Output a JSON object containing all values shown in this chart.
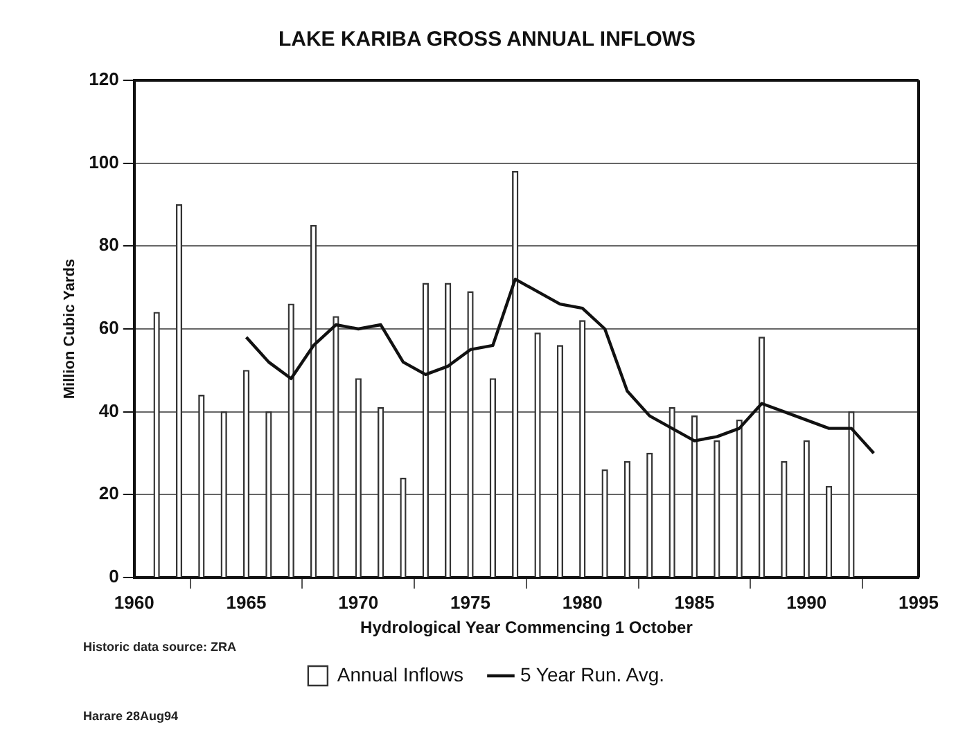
{
  "chart_data": {
    "type": "bar",
    "title": "LAKE KARIBA GROSS ANNUAL INFLOWS",
    "xlabel": "Hydrological Year Commencing 1 October",
    "ylabel": "Million Cubic Yards",
    "series": [
      {
        "name": "Annual Inflows",
        "color": "#333333",
        "x": [
          1961,
          1962,
          1963,
          1964,
          1965,
          1966,
          1967,
          1968,
          1969,
          1970,
          1971,
          1972,
          1973,
          1974,
          1975,
          1976,
          1977,
          1978,
          1979,
          1980,
          1981,
          1982,
          1983,
          1984,
          1985,
          1986,
          1987,
          1988,
          1989,
          1990,
          1991,
          1992
        ],
        "values": [
          64,
          90,
          44,
          40,
          50,
          40,
          66,
          85,
          63,
          48,
          41,
          24,
          71,
          71,
          69,
          48,
          98,
          59,
          56,
          62,
          26,
          28,
          30,
          41,
          39,
          33,
          38,
          58,
          28,
          33,
          22,
          40
        ]
      },
      {
        "name": "5 Year Run. Avg.",
        "type": "line",
        "color": "#111111",
        "x": [
          1965,
          1966,
          1967,
          1968,
          1969,
          1970,
          1971,
          1972,
          1973,
          1974,
          1975,
          1976,
          1977,
          1978,
          1979,
          1980,
          1981,
          1982,
          1983,
          1984,
          1985,
          1986,
          1987,
          1988,
          1989,
          1990,
          1991,
          1992,
          1993
        ],
        "values": [
          58,
          52,
          48,
          56,
          61,
          60,
          61,
          52,
          49,
          51,
          55,
          56,
          72,
          69,
          66,
          65,
          60,
          45,
          39,
          36,
          33,
          34,
          36,
          42,
          40,
          38,
          36,
          36,
          30
        ]
      }
    ],
    "xlim": [
      1960,
      1995
    ],
    "xticks": [
      1960,
      1965,
      1970,
      1975,
      1980,
      1985,
      1990,
      1995
    ],
    "ylim": [
      0,
      120
    ],
    "yticks": [
      0,
      20,
      40,
      60,
      80,
      100,
      120
    ],
    "grid": "y",
    "legend": "bottom",
    "marker": "none",
    "line_style": "solid",
    "annotations": [
      "Historic data source: ZRA",
      "Harare 28Aug94"
    ]
  }
}
